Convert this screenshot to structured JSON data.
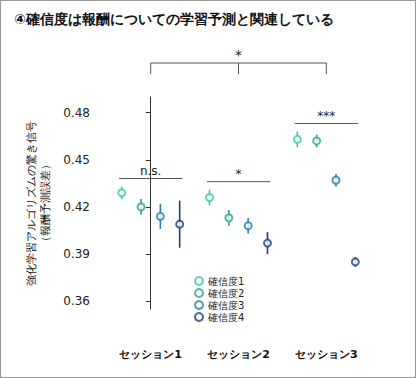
{
  "chart_data": {
    "type": "scatter",
    "title": "④確信度は報酬についての学習予測と関連している",
    "ylabel": [
      "強化学習アルゴリズムの驚き信号",
      "（報酬予測誤差）"
    ],
    "categories": [
      "セッション1",
      "セッション2",
      "セッション3"
    ],
    "series": [
      {
        "name": "確信度1",
        "color": "#3cc8a6",
        "marker": "open_circle",
        "values": [
          0.429,
          0.426,
          0.463
        ],
        "errors": [
          0.004,
          0.005,
          0.005
        ]
      },
      {
        "name": "確信度2",
        "color": "#2aa394",
        "marker": "open_circle",
        "values": [
          0.42,
          0.413,
          0.462
        ],
        "errors": [
          0.005,
          0.005,
          0.004
        ]
      },
      {
        "name": "確信度3",
        "color": "#2a7ea3",
        "marker": "open_circle",
        "values": [
          0.414,
          0.408,
          0.437
        ],
        "errors": [
          0.008,
          0.005,
          0.004
        ]
      },
      {
        "name": "確信度4",
        "color": "#1f3f7c",
        "marker": "open_circle",
        "values": [
          0.409,
          0.397,
          0.385
        ],
        "errors": [
          0.015,
          0.007,
          0.003
        ]
      }
    ],
    "ylim": [
      0.355,
      0.49
    ],
    "yticks": [
      0.36,
      0.39,
      0.42,
      0.45,
      0.48
    ],
    "grid": false,
    "legend": "bottom",
    "annotations": [
      {
        "text": "n.s.",
        "category": "セッション1"
      },
      {
        "text": "*",
        "category": "セッション2"
      },
      {
        "text": "***",
        "category": "セッション3"
      },
      {
        "text": "*",
        "categories": [
          "セッション1",
          "セッション2",
          "セッション3"
        ]
      }
    ]
  }
}
